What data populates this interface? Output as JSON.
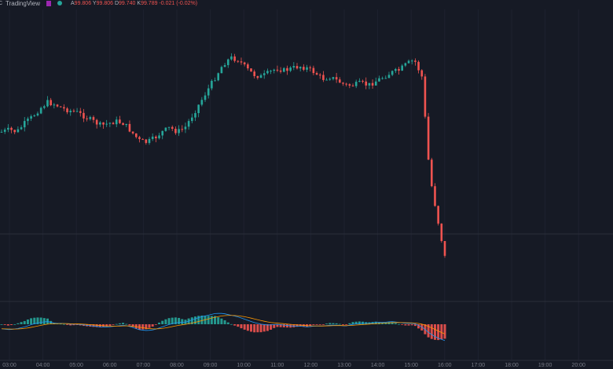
{
  "header": {
    "brand": "TradingView",
    "symbol_glyph": "C",
    "ohlc": {
      "open_label": "A",
      "open": "99.806",
      "high_label": "Y",
      "high": "99.806",
      "low_label": "D",
      "low": "99.740",
      "close_label": "K",
      "close": "99.789",
      "change": "-0.021 (-0.02%)"
    }
  },
  "colors": {
    "background": "#161a25",
    "up": "#26a69a",
    "down": "#ef5350",
    "macd_line": "#2196f3",
    "signal_line": "#ff9800",
    "hist_up": "#26a69a",
    "hist_down": "#ef5350"
  },
  "x_axis": {
    "labels": [
      "03:00",
      "04:00",
      "05:00",
      "06:00",
      "07:00",
      "08:00",
      "09:00",
      "10:00",
      "11:00",
      "12:00",
      "13:00",
      "14:00",
      "15:00",
      "16:00",
      "17:00",
      "18:00",
      "19:00",
      "20:00"
    ]
  },
  "chart_data": {
    "type": "candlestick",
    "price_trace": [
      0.4,
      0.39,
      0.4,
      0.36,
      0.33,
      0.29,
      0.26,
      0.27,
      0.29,
      0.3,
      0.31,
      0.33,
      0.35,
      0.37,
      0.36,
      0.35,
      0.36,
      0.4,
      0.44,
      0.45,
      0.43,
      0.4,
      0.38,
      0.4,
      0.38,
      0.32,
      0.26,
      0.2,
      0.14,
      0.08,
      0.05,
      0.06,
      0.1,
      0.13,
      0.14,
      0.12,
      0.1,
      0.11,
      0.1,
      0.09,
      0.1,
      0.12,
      0.15,
      0.14,
      0.16,
      0.18,
      0.18,
      0.17,
      0.18,
      0.16,
      0.14,
      0.12,
      0.11,
      0.08,
      0.06,
      0.14,
      0.6,
      0.8,
      0.99
    ],
    "macd_trace": [
      -0.05,
      -0.06,
      -0.05,
      -0.03,
      0.0,
      0.02,
      0.03,
      0.01,
      0.01,
      0.0,
      0.0,
      -0.01,
      -0.02,
      -0.03,
      -0.03,
      -0.02,
      -0.01,
      -0.03,
      -0.06,
      -0.07,
      -0.06,
      -0.03,
      0.0,
      0.02,
      0.02,
      0.05,
      0.08,
      0.1,
      0.12,
      0.12,
      0.1,
      0.08,
      0.05,
      0.02,
      0.0,
      -0.01,
      0.0,
      -0.01,
      -0.02,
      -0.02,
      -0.03,
      -0.02,
      -0.02,
      -0.01,
      -0.01,
      -0.02,
      0.0,
      0.01,
      0.01,
      0.02,
      0.02,
      0.03,
      0.02,
      0.01,
      0.01,
      -0.03,
      -0.1,
      -0.15,
      -0.18
    ]
  }
}
